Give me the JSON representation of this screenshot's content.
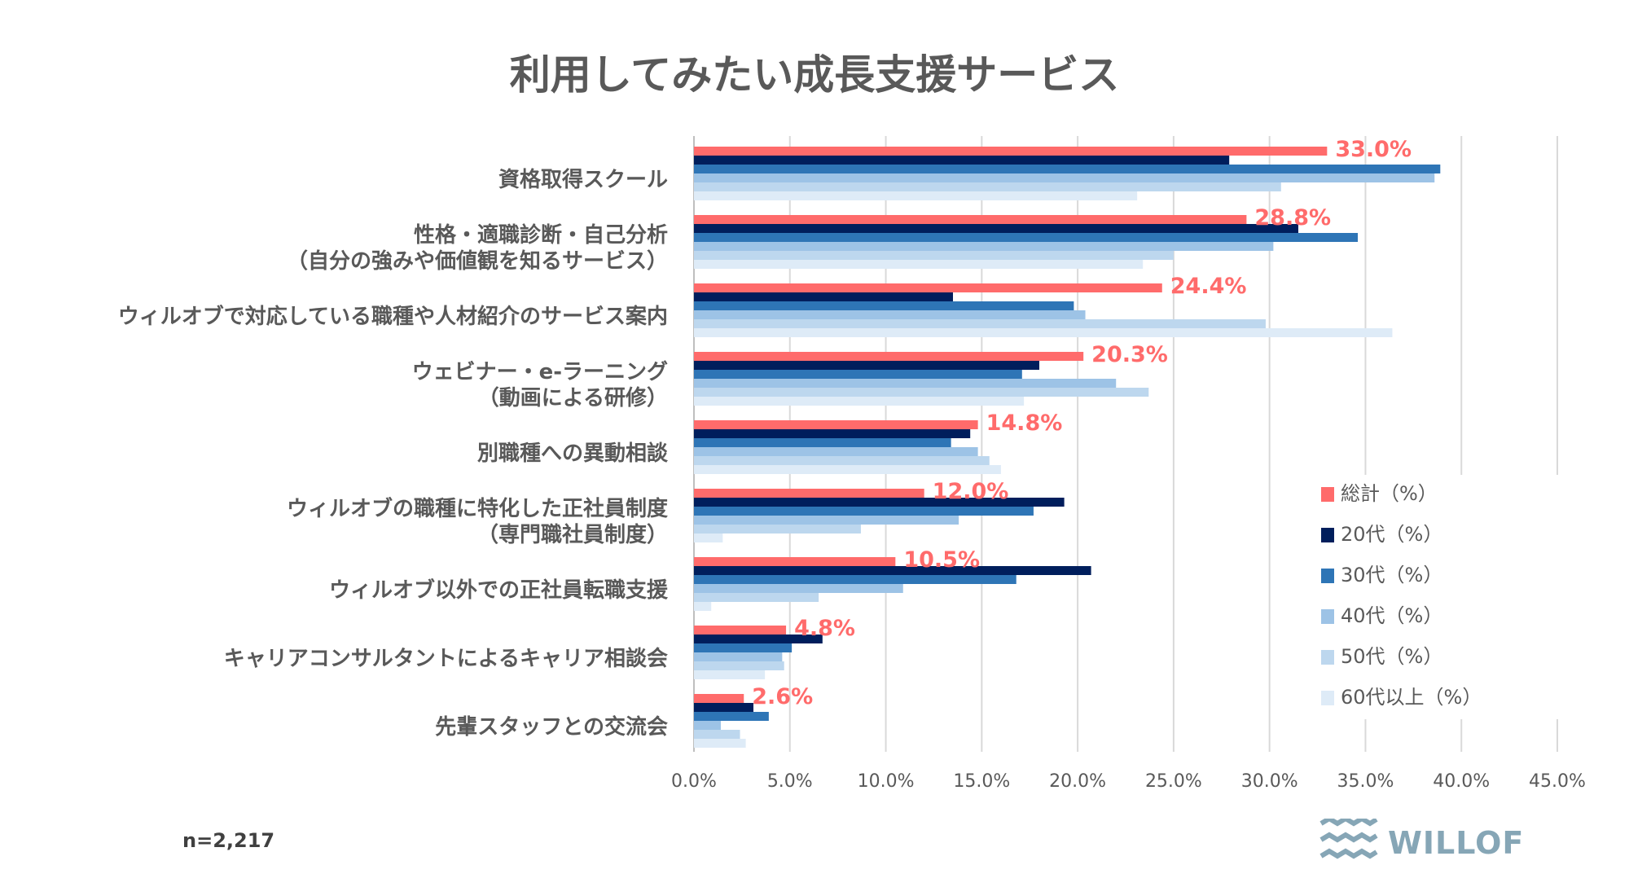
{
  "chart_data": {
    "type": "bar",
    "orientation": "horizontal",
    "title": "利用してみたい成長支援サービス",
    "categories": [
      "資格取得スクール",
      "性格・適職診断・自己分析\n（自分の強みや価値観を知るサービス）",
      "ウィルオブで対応している職種や人材紹介のサービス案内",
      "ウェビナー・e-ラーニング\n（動画による研修）",
      "別職種への異動相談",
      "ウィルオブの職種に特化した正社員制度\n（専門職社員制度）",
      "ウィルオブ以外での正社員転職支援",
      "キャリアコンサルタントによるキャリア相談会",
      "先輩スタッフとの交流会"
    ],
    "series": [
      {
        "name": "総計（%）",
        "color": "#FF6B6B",
        "values": [
          33.0,
          28.8,
          24.4,
          20.3,
          14.8,
          12.0,
          10.5,
          4.8,
          2.6
        ]
      },
      {
        "name": "20代（%）",
        "color": "#001E5C",
        "values": [
          27.9,
          31.5,
          13.5,
          18.0,
          14.4,
          19.3,
          20.7,
          6.7,
          3.1
        ]
      },
      {
        "name": "30代（%）",
        "color": "#2E75B6",
        "values": [
          38.9,
          34.6,
          19.8,
          17.1,
          13.4,
          17.7,
          16.8,
          5.1,
          3.9
        ]
      },
      {
        "name": "40代（%）",
        "color": "#9DC3E6",
        "values": [
          38.6,
          30.2,
          20.4,
          22.0,
          14.8,
          13.8,
          10.9,
          4.6,
          1.4
        ]
      },
      {
        "name": "50代（%）",
        "color": "#BDD7EE",
        "values": [
          30.6,
          25.0,
          29.8,
          23.7,
          15.4,
          8.7,
          6.5,
          4.7,
          2.4
        ]
      },
      {
        "name": "60代以上（%）",
        "color": "#DEEBF7",
        "values": [
          23.1,
          23.4,
          36.4,
          17.2,
          16.0,
          1.5,
          0.9,
          3.7,
          2.7
        ]
      }
    ],
    "data_labels": [
      "33.0%",
      "28.8%",
      "24.4%",
      "20.3%",
      "14.8%",
      "12.0%",
      "10.5%",
      "4.8%",
      "2.6%"
    ],
    "xlim": [
      0,
      45
    ],
    "xticks": [
      "0.0%",
      "5.0%",
      "10.0%",
      "15.0%",
      "20.0%",
      "25.0%",
      "30.0%",
      "35.0%",
      "40.0%",
      "45.0%"
    ],
    "grid": true,
    "legend_position": "bottom-right"
  },
  "footnote": "n=2,217",
  "logo": {
    "text": "WILLOF",
    "color": "#86A6B6"
  }
}
